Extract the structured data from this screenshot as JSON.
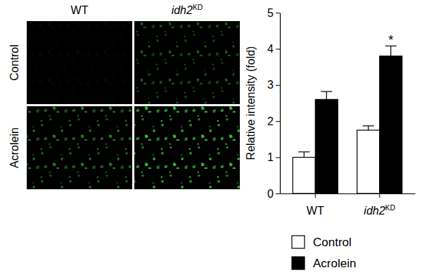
{
  "micrographs": {
    "columns": [
      "WT",
      "idh2KD"
    ],
    "rows": [
      "Control",
      "Acrolein"
    ]
  },
  "chart_data": {
    "type": "bar",
    "categories": [
      "WT",
      "idh2KD"
    ],
    "y_label": "Relative intensity (fold)",
    "series": [
      {
        "name": "Control",
        "color": "#ffffff",
        "values": [
          1.0,
          1.75
        ],
        "errors": [
          0.15,
          0.12
        ]
      },
      {
        "name": "Acrolein",
        "color": "#000000",
        "values": [
          2.6,
          3.8
        ],
        "errors": [
          0.22,
          0.28
        ]
      }
    ],
    "annotations": [
      {
        "text": "*",
        "category": 1,
        "series": 1
      }
    ],
    "ylim": [
      0,
      5
    ],
    "yticks": [
      0,
      1,
      2,
      3,
      4,
      5
    ],
    "legend": "bottom",
    "grid": false
  }
}
